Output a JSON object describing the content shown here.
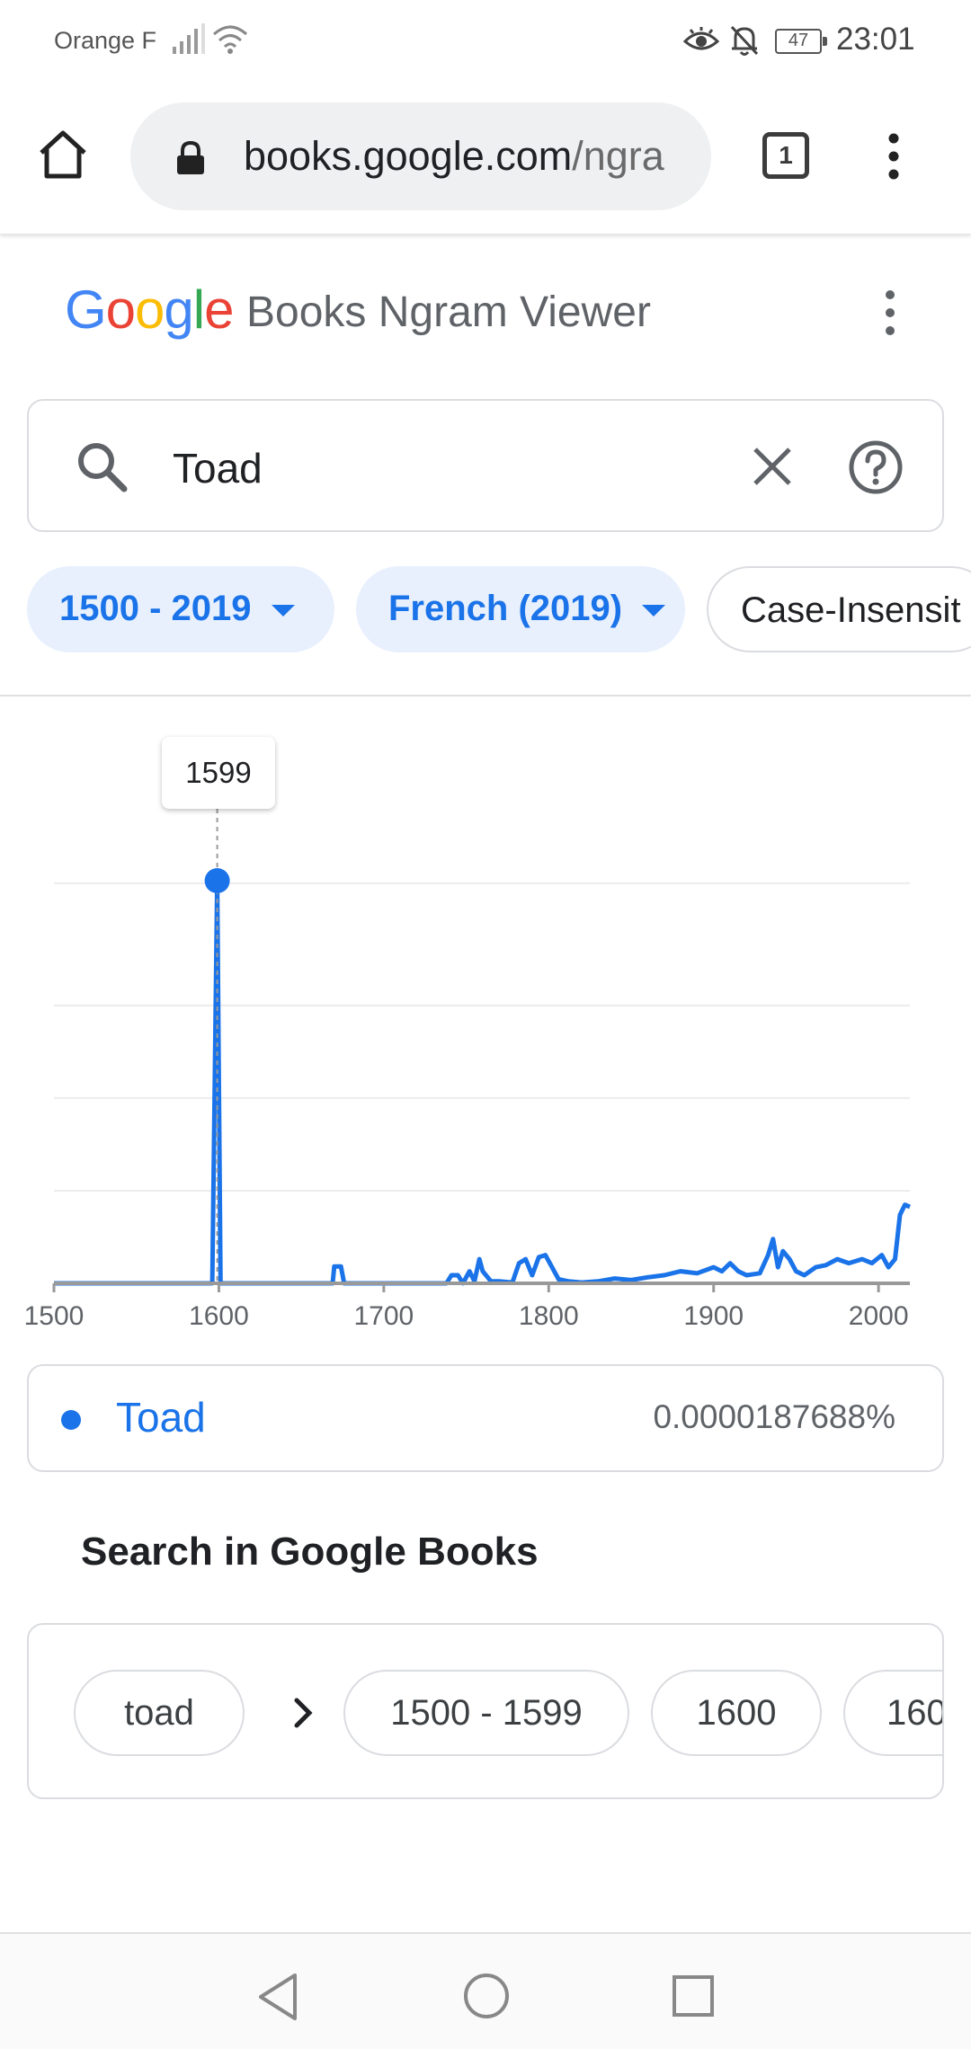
{
  "status_bar": {
    "carrier": "Orange F",
    "battery": "47",
    "time": "23:01"
  },
  "browser": {
    "url_host": "books.google.com",
    "url_rest": "/ngra",
    "tab_count": "1"
  },
  "header": {
    "logo": "Google",
    "title": "Books Ngram Viewer"
  },
  "search": {
    "query": "Toad"
  },
  "filters": {
    "year_range": "1500 - 2019",
    "corpus": "French (2019)",
    "case": "Case-Insensit"
  },
  "chart_data": {
    "type": "line",
    "x_ticks": [
      "1500",
      "1600",
      "1700",
      "1800",
      "1900",
      "2000"
    ],
    "xlim": [
      1500,
      2019
    ],
    "grid": true,
    "tooltip_year": "1599",
    "series": [
      {
        "name": "Toad",
        "color": "#1a73e8",
        "points": [
          [
            1500,
            0
          ],
          [
            1595,
            0
          ],
          [
            1596,
            0
          ],
          [
            1599,
            1
          ],
          [
            1601,
            0
          ],
          [
            1602,
            0
          ],
          [
            1669,
            0
          ],
          [
            1670,
            0.042
          ],
          [
            1674,
            0.042
          ],
          [
            1676,
            0
          ],
          [
            1738,
            0
          ],
          [
            1741,
            0.02
          ],
          [
            1745,
            0.02
          ],
          [
            1748,
            0
          ],
          [
            1752,
            0.03
          ],
          [
            1755,
            0.005
          ],
          [
            1758,
            0.06
          ],
          [
            1760,
            0.03
          ],
          [
            1765,
            0.005
          ],
          [
            1770,
            0.005
          ],
          [
            1778,
            0.002
          ],
          [
            1782,
            0.05
          ],
          [
            1786,
            0.06
          ],
          [
            1790,
            0.02
          ],
          [
            1794,
            0.065
          ],
          [
            1798,
            0.07
          ],
          [
            1802,
            0.04
          ],
          [
            1806,
            0.01
          ],
          [
            1812,
            0.005
          ],
          [
            1820,
            0.002
          ],
          [
            1830,
            0.005
          ],
          [
            1840,
            0.012
          ],
          [
            1850,
            0.008
          ],
          [
            1860,
            0.015
          ],
          [
            1870,
            0.02
          ],
          [
            1880,
            0.03
          ],
          [
            1890,
            0.025
          ],
          [
            1900,
            0.04
          ],
          [
            1905,
            0.03
          ],
          [
            1910,
            0.05
          ],
          [
            1915,
            0.03
          ],
          [
            1920,
            0.02
          ],
          [
            1928,
            0.025
          ],
          [
            1933,
            0.07
          ],
          [
            1936,
            0.11
          ],
          [
            1939,
            0.04
          ],
          [
            1942,
            0.08
          ],
          [
            1946,
            0.06
          ],
          [
            1950,
            0.03
          ],
          [
            1955,
            0.02
          ],
          [
            1962,
            0.04
          ],
          [
            1968,
            0.045
          ],
          [
            1975,
            0.06
          ],
          [
            1982,
            0.05
          ],
          [
            1990,
            0.06
          ],
          [
            1996,
            0.05
          ],
          [
            2002,
            0.07
          ],
          [
            2006,
            0.04
          ],
          [
            2010,
            0.06
          ],
          [
            2013,
            0.17
          ],
          [
            2016,
            0.195
          ],
          [
            2019,
            0.19
          ]
        ]
      }
    ]
  },
  "legend": {
    "name": "Toad",
    "value": "0.0000187688%"
  },
  "books": {
    "heading": "Search in Google Books",
    "term": "toad",
    "ranges": [
      "1500 - 1599",
      "1600",
      "160"
    ]
  }
}
